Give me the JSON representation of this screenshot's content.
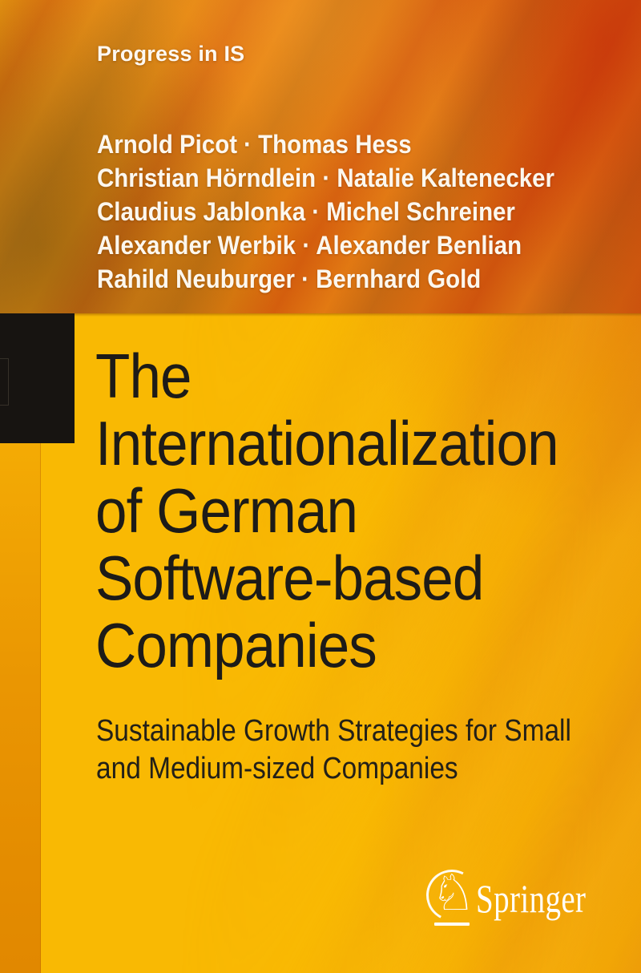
{
  "cover": {
    "series_label": "Progress in IS",
    "authors": [
      "Arnold Picot · Thomas Hess",
      "Christian Hörndlein · Natalie Kaltenecker",
      "Claudius Jablonka · Michel Schreiner",
      "Alexander Werbik · Alexander Benlian",
      "Rahild Neuburger · Bernhard Gold"
    ],
    "title_lines": [
      "The",
      "Internationalization",
      "of German",
      "Software-based",
      "Companies"
    ],
    "subtitle_lines": [
      "Sustainable Growth Strategies for Small",
      "and Medium-sized Companies"
    ],
    "publisher": {
      "name": "Springer",
      "logo_icon": "springer-horse-icon",
      "horse_glyph": "♘"
    },
    "colors": {
      "top_band_orange": "#dd7a10",
      "streak_red": "#c43410",
      "streak_bright": "#f28c1a",
      "gold_panel": "#f9b903",
      "spine_stripe": "#e18800",
      "black_tab": "#171411",
      "title_text": "#1d1b18",
      "light_text": "#fcf7ee"
    }
  }
}
